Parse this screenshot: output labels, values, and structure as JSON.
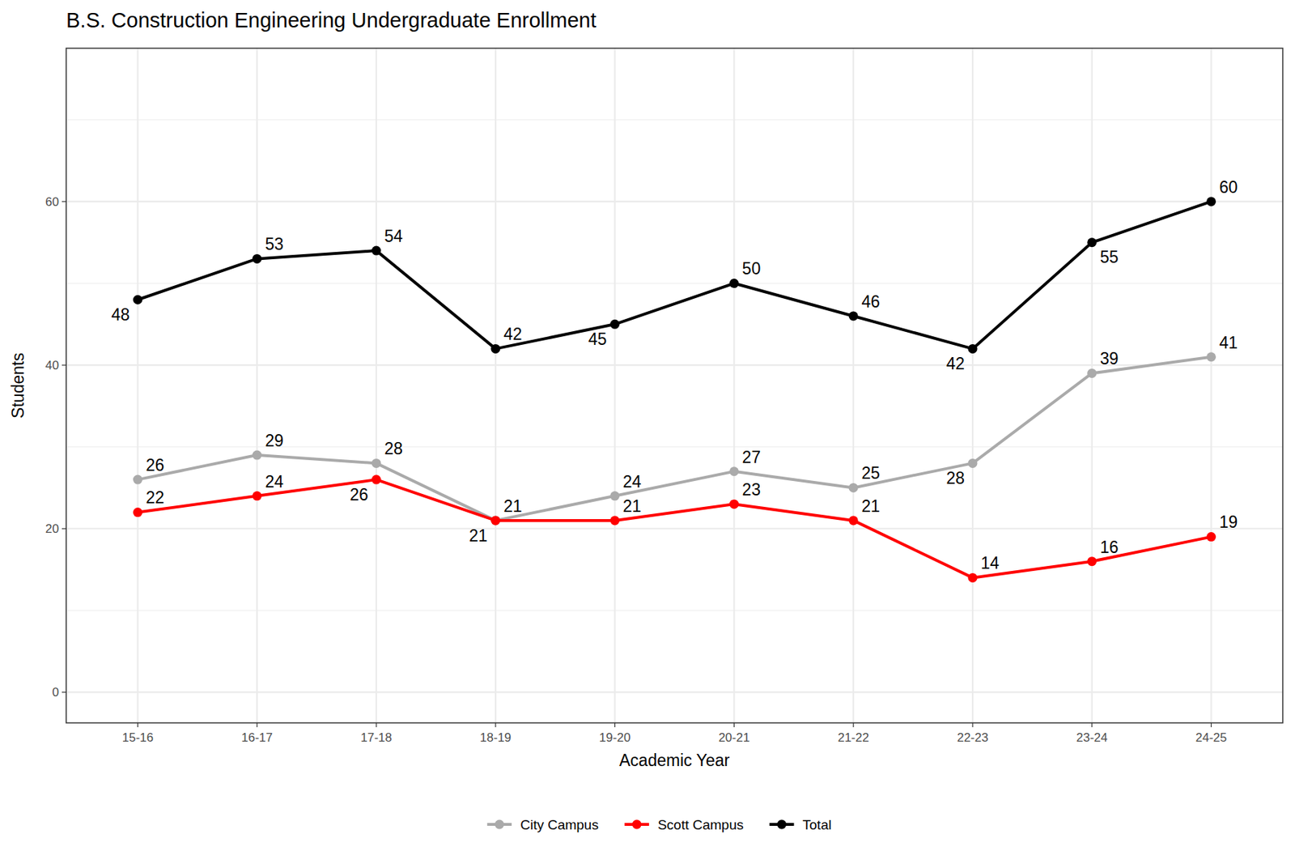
{
  "chart_data": {
    "type": "line",
    "title": "B.S. Construction Engineering Undergraduate Enrollment",
    "x_label": "Academic Year",
    "y_label": "Students",
    "categories": [
      "15-16",
      "16-17",
      "17-18",
      "18-19",
      "19-20",
      "20-21",
      "21-22",
      "22-23",
      "23-24",
      "24-25"
    ],
    "series": [
      {
        "name": "City Campus",
        "color": "#aaaaaa",
        "values": [
          26,
          29,
          28,
          21,
          24,
          27,
          25,
          28,
          39,
          41
        ]
      },
      {
        "name": "Scott Campus",
        "color": "#ff0000",
        "values": [
          22,
          24,
          26,
          21,
          21,
          23,
          21,
          14,
          16,
          19
        ]
      },
      {
        "name": "Total",
        "color": "#000000",
        "values": [
          48,
          53,
          54,
          42,
          45,
          50,
          46,
          42,
          55,
          60
        ]
      }
    ],
    "ylim": [
      -3.75,
      78.75
    ],
    "yticks": [
      0,
      20,
      40,
      60
    ],
    "grid": true,
    "legend": "bottom",
    "data_labels": true,
    "marker": "circle",
    "line_style": "solid"
  }
}
